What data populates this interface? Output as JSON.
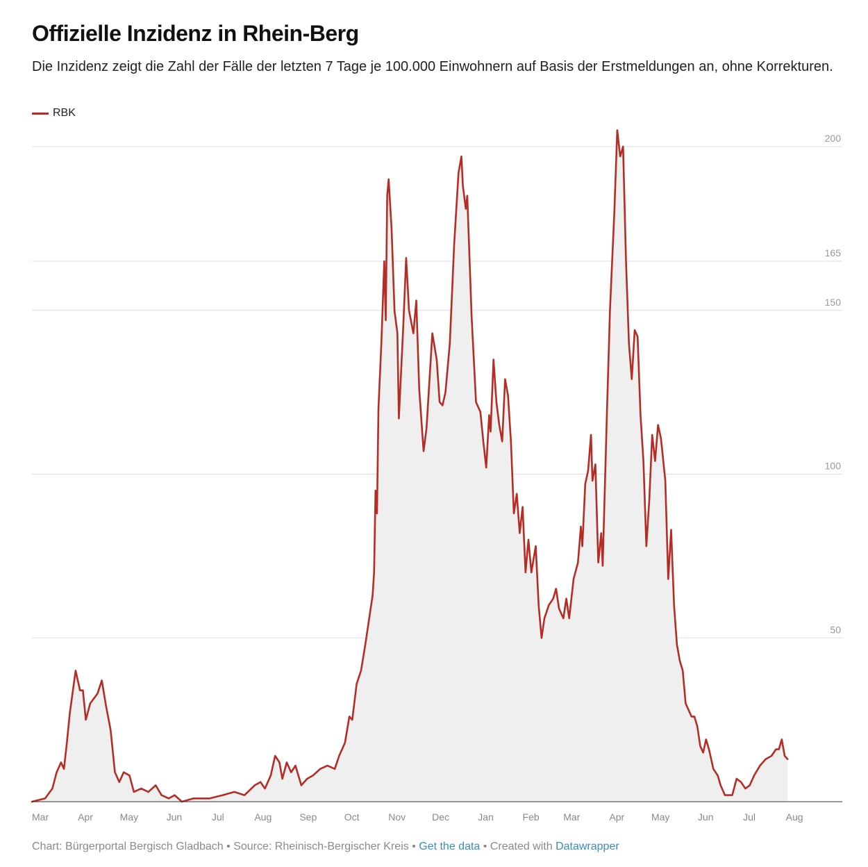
{
  "title": "Offizielle Inzidenz in Rhein-Berg",
  "subtitle": "Die Inzidenz zeigt die Zahl der Fälle der letzten 7 Tage je 100.000 Einwohnern auf Basis der Erstmeldungen an, ohne Korrekturen.",
  "legend": {
    "label": "RBK",
    "color": "#b52c24"
  },
  "footer": {
    "chart_credit": "Chart: Bürgerportal Bergisch Gladbach",
    "sep1": " • ",
    "source": "Source: Rheinisch-Bergischer Kreis",
    "sep2": " • ",
    "get_data": "Get the data",
    "sep3": " • ",
    "created_with": "Created with ",
    "datawrapper": "Datawrapper"
  },
  "colors": {
    "line": "#b52c24",
    "area": "#efefef",
    "grid": "#dddddd",
    "tick_text": "#999999",
    "axis_text": "#888888",
    "baseline": "#333333"
  },
  "chart_data": {
    "type": "area",
    "grid": true,
    "legend_position": "top-left",
    "ylim": [
      0,
      205
    ],
    "y_ticks": [
      50,
      100,
      150,
      165,
      200
    ],
    "x_tick_labels": [
      "Mar",
      "Apr",
      "May",
      "Jun",
      "Jul",
      "Aug",
      "Sep",
      "Oct",
      "Nov",
      "Dec",
      "Jan",
      "Feb",
      "Mar",
      "Apr",
      "May",
      "Jun",
      "Jul",
      "Aug"
    ],
    "x_start": "2020-03-01",
    "x_end": "2021-08-31",
    "series": [
      {
        "name": "RBK",
        "points": [
          [
            "2020-03-01",
            0
          ],
          [
            "2020-03-10",
            1
          ],
          [
            "2020-03-15",
            4
          ],
          [
            "2020-03-18",
            9
          ],
          [
            "2020-03-21",
            12
          ],
          [
            "2020-03-23",
            10
          ],
          [
            "2020-03-25",
            18
          ],
          [
            "2020-03-27",
            27
          ],
          [
            "2020-03-31",
            40
          ],
          [
            "2020-04-03",
            34
          ],
          [
            "2020-04-05",
            34
          ],
          [
            "2020-04-07",
            25
          ],
          [
            "2020-04-10",
            30
          ],
          [
            "2020-04-15",
            33
          ],
          [
            "2020-04-18",
            37
          ],
          [
            "2020-04-21",
            29
          ],
          [
            "2020-04-24",
            22
          ],
          [
            "2020-04-27",
            9
          ],
          [
            "2020-04-30",
            6
          ],
          [
            "2020-05-03",
            9
          ],
          [
            "2020-05-07",
            8
          ],
          [
            "2020-05-10",
            3
          ],
          [
            "2020-05-15",
            4
          ],
          [
            "2020-05-20",
            3
          ],
          [
            "2020-05-25",
            5
          ],
          [
            "2020-05-29",
            2
          ],
          [
            "2020-06-03",
            1
          ],
          [
            "2020-06-07",
            2
          ],
          [
            "2020-06-12",
            0
          ],
          [
            "2020-06-20",
            1
          ],
          [
            "2020-07-01",
            1
          ],
          [
            "2020-07-10",
            2
          ],
          [
            "2020-07-18",
            3
          ],
          [
            "2020-07-25",
            2
          ],
          [
            "2020-08-01",
            5
          ],
          [
            "2020-08-05",
            6
          ],
          [
            "2020-08-08",
            4
          ],
          [
            "2020-08-12",
            8
          ],
          [
            "2020-08-15",
            14
          ],
          [
            "2020-08-18",
            12
          ],
          [
            "2020-08-20",
            7
          ],
          [
            "2020-08-23",
            12
          ],
          [
            "2020-08-26",
            9
          ],
          [
            "2020-08-29",
            11
          ],
          [
            "2020-09-02",
            5
          ],
          [
            "2020-09-06",
            7
          ],
          [
            "2020-09-10",
            8
          ],
          [
            "2020-09-15",
            10
          ],
          [
            "2020-09-20",
            11
          ],
          [
            "2020-09-25",
            10
          ],
          [
            "2020-09-28",
            14
          ],
          [
            "2020-10-02",
            18
          ],
          [
            "2020-10-05",
            26
          ],
          [
            "2020-10-07",
            25
          ],
          [
            "2020-10-10",
            36
          ],
          [
            "2020-10-13",
            40
          ],
          [
            "2020-10-16",
            48
          ],
          [
            "2020-10-19",
            57
          ],
          [
            "2020-10-21",
            63
          ],
          [
            "2020-10-22",
            70
          ],
          [
            "2020-10-23",
            95
          ],
          [
            "2020-10-24",
            88
          ],
          [
            "2020-10-25",
            120
          ],
          [
            "2020-10-27",
            140
          ],
          [
            "2020-10-29",
            165
          ],
          [
            "2020-10-30",
            147
          ],
          [
            "2020-10-31",
            185
          ],
          [
            "2020-11-01",
            190
          ],
          [
            "2020-11-03",
            175
          ],
          [
            "2020-11-05",
            150
          ],
          [
            "2020-11-07",
            143
          ],
          [
            "2020-11-08",
            117
          ],
          [
            "2020-11-11",
            145
          ],
          [
            "2020-11-13",
            166
          ],
          [
            "2020-11-15",
            150
          ],
          [
            "2020-11-18",
            143
          ],
          [
            "2020-11-20",
            153
          ],
          [
            "2020-11-22",
            126
          ],
          [
            "2020-11-25",
            107
          ],
          [
            "2020-11-27",
            114
          ],
          [
            "2020-12-01",
            143
          ],
          [
            "2020-12-04",
            135
          ],
          [
            "2020-12-06",
            122
          ],
          [
            "2020-12-08",
            121
          ],
          [
            "2020-12-10",
            125
          ],
          [
            "2020-12-13",
            140
          ],
          [
            "2020-12-16",
            170
          ],
          [
            "2020-12-19",
            192
          ],
          [
            "2020-12-21",
            197
          ],
          [
            "2020-12-22",
            188
          ],
          [
            "2020-12-24",
            181
          ],
          [
            "2020-12-25",
            185
          ],
          [
            "2020-12-28",
            148
          ],
          [
            "2020-12-31",
            122
          ],
          [
            "2021-01-03",
            119
          ],
          [
            "2021-01-05",
            110
          ],
          [
            "2021-01-07",
            102
          ],
          [
            "2021-01-09",
            118
          ],
          [
            "2021-01-10",
            113
          ],
          [
            "2021-01-12",
            135
          ],
          [
            "2021-01-14",
            122
          ],
          [
            "2021-01-16",
            115
          ],
          [
            "2021-01-18",
            110
          ],
          [
            "2021-01-20",
            129
          ],
          [
            "2021-01-22",
            124
          ],
          [
            "2021-01-24",
            110
          ],
          [
            "2021-01-26",
            88
          ],
          [
            "2021-01-28",
            94
          ],
          [
            "2021-01-30",
            82
          ],
          [
            "2021-02-01",
            90
          ],
          [
            "2021-02-03",
            70
          ],
          [
            "2021-02-05",
            80
          ],
          [
            "2021-02-07",
            70
          ],
          [
            "2021-02-10",
            78
          ],
          [
            "2021-02-12",
            60
          ],
          [
            "2021-02-14",
            50
          ],
          [
            "2021-02-16",
            56
          ],
          [
            "2021-02-19",
            60
          ],
          [
            "2021-02-22",
            62
          ],
          [
            "2021-02-24",
            65
          ],
          [
            "2021-02-26",
            59
          ],
          [
            "2021-03-01",
            56
          ],
          [
            "2021-03-03",
            62
          ],
          [
            "2021-03-05",
            56
          ],
          [
            "2021-03-08",
            68
          ],
          [
            "2021-03-11",
            73
          ],
          [
            "2021-03-13",
            84
          ],
          [
            "2021-03-14",
            78
          ],
          [
            "2021-03-16",
            97
          ],
          [
            "2021-03-18",
            101
          ],
          [
            "2021-03-20",
            112
          ],
          [
            "2021-03-21",
            98
          ],
          [
            "2021-03-23",
            103
          ],
          [
            "2021-03-25",
            73
          ],
          [
            "2021-03-27",
            82
          ],
          [
            "2021-03-28",
            72
          ],
          [
            "2021-03-31",
            120
          ],
          [
            "2021-04-02",
            150
          ],
          [
            "2021-04-05",
            180
          ],
          [
            "2021-04-07",
            205
          ],
          [
            "2021-04-09",
            197
          ],
          [
            "2021-04-11",
            200
          ],
          [
            "2021-04-13",
            165
          ],
          [
            "2021-04-15",
            140
          ],
          [
            "2021-04-17",
            129
          ],
          [
            "2021-04-19",
            144
          ],
          [
            "2021-04-21",
            142
          ],
          [
            "2021-04-23",
            118
          ],
          [
            "2021-04-25",
            104
          ],
          [
            "2021-04-27",
            78
          ],
          [
            "2021-04-29",
            92
          ],
          [
            "2021-05-01",
            112
          ],
          [
            "2021-05-03",
            104
          ],
          [
            "2021-05-05",
            115
          ],
          [
            "2021-05-07",
            111
          ],
          [
            "2021-05-10",
            98
          ],
          [
            "2021-05-12",
            68
          ],
          [
            "2021-05-14",
            83
          ],
          [
            "2021-05-16",
            60
          ],
          [
            "2021-05-18",
            48
          ],
          [
            "2021-05-20",
            43
          ],
          [
            "2021-05-22",
            40
          ],
          [
            "2021-05-24",
            30
          ],
          [
            "2021-05-26",
            28
          ],
          [
            "2021-05-28",
            26
          ],
          [
            "2021-05-30",
            26
          ],
          [
            "2021-06-01",
            23
          ],
          [
            "2021-06-03",
            17
          ],
          [
            "2021-06-05",
            15
          ],
          [
            "2021-06-07",
            19
          ],
          [
            "2021-06-09",
            16
          ],
          [
            "2021-06-12",
            10
          ],
          [
            "2021-06-15",
            8
          ],
          [
            "2021-06-17",
            5
          ],
          [
            "2021-06-20",
            2
          ],
          [
            "2021-06-25",
            2
          ],
          [
            "2021-06-28",
            7
          ],
          [
            "2021-07-01",
            6
          ],
          [
            "2021-07-04",
            4
          ],
          [
            "2021-07-07",
            5
          ],
          [
            "2021-07-10",
            8
          ],
          [
            "2021-07-14",
            11
          ],
          [
            "2021-07-18",
            13
          ],
          [
            "2021-07-22",
            14
          ],
          [
            "2021-07-25",
            16
          ],
          [
            "2021-07-27",
            16
          ],
          [
            "2021-07-29",
            19
          ],
          [
            "2021-07-31",
            14
          ],
          [
            "2021-08-02",
            13
          ]
        ]
      }
    ]
  }
}
